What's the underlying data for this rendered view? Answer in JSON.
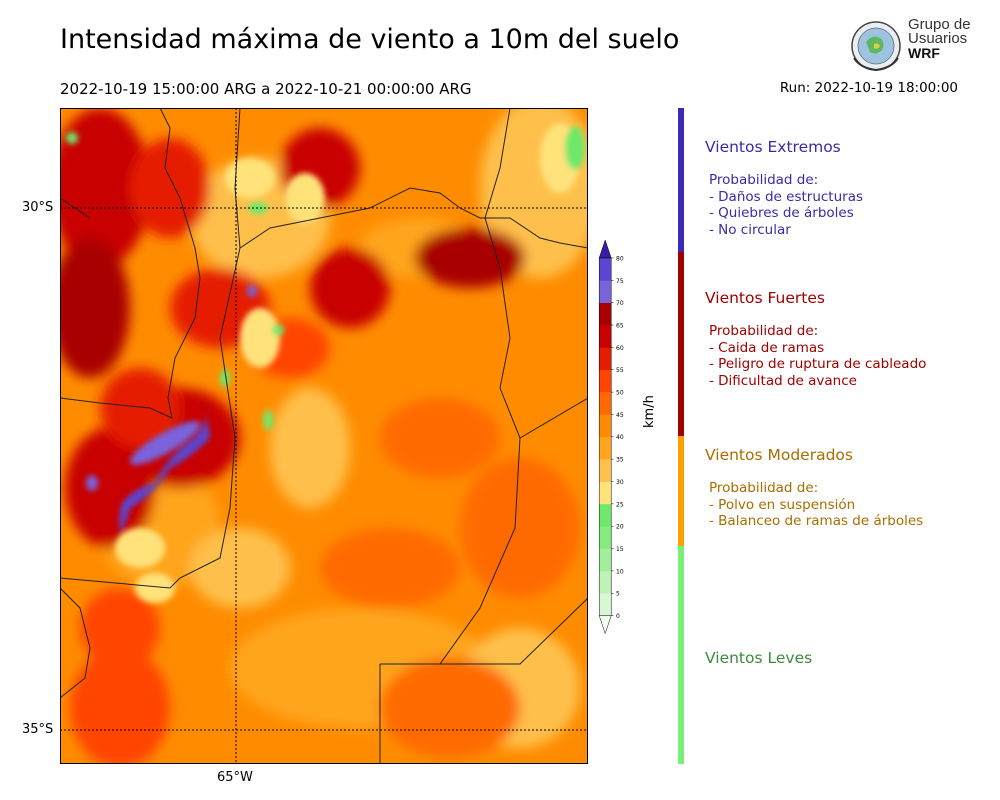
{
  "title": "Intensidad máxima de viento a 10m del suelo",
  "period": "2022-10-19 15:00:00 ARG  a  2022-10-21 00:00:00 ARG",
  "run": "Run: 2022-10-19 18:00:00",
  "logo": {
    "line1": "Grupo de",
    "line2": "Usuarios",
    "line3": "WRF"
  },
  "map": {
    "lat_labels": [
      "30°S",
      "35°S"
    ],
    "lon_labels": [
      "65°W"
    ]
  },
  "colorbar": {
    "unit": "km/h",
    "ticks": [
      "80",
      "75",
      "70",
      "65",
      "60",
      "55",
      "50",
      "45",
      "40",
      "35",
      "30",
      "25",
      "20",
      "15",
      "10",
      "5",
      "0"
    ],
    "colors": [
      "#f0fff0",
      "#d9f7d5",
      "#bff2b8",
      "#a3ee99",
      "#86ea7c",
      "#6fe86b",
      "#ffe27a",
      "#ffc04c",
      "#ffa51f",
      "#ff8c00",
      "#ff6a00",
      "#ff4500",
      "#e51c00",
      "#c80000",
      "#a80000",
      "#7a64dc",
      "#5a46d2",
      "#4a2fbe",
      "#3a1aa8"
    ]
  },
  "categories": [
    {
      "title": "Vientos Extremos",
      "color": "#3b2aa8",
      "lines": [
        "Probabilidad de:",
        "- Daños de estructuras",
        "- Quiebres de árboles",
        "- No circular"
      ]
    },
    {
      "title": "Vientos Fuertes",
      "color": "#a00000",
      "lines": [
        "Probabilidad de:",
        "- Caida de ramas",
        "- Peligro de ruptura de cableado",
        "- Dificultad de avance"
      ]
    },
    {
      "title": "Vientos Moderados",
      "color": "#a86e00",
      "lines": [
        "Probabilidad de:",
        "- Polvo en suspensión",
        "- Balanceo de ramas de árboles"
      ]
    },
    {
      "title": "Vientos Leves",
      "color": "#3c8a3c",
      "lines": []
    }
  ],
  "legend_bar_colors": [
    "#3b2ab4",
    "#a00000",
    "#ffa000",
    "#78f078"
  ]
}
